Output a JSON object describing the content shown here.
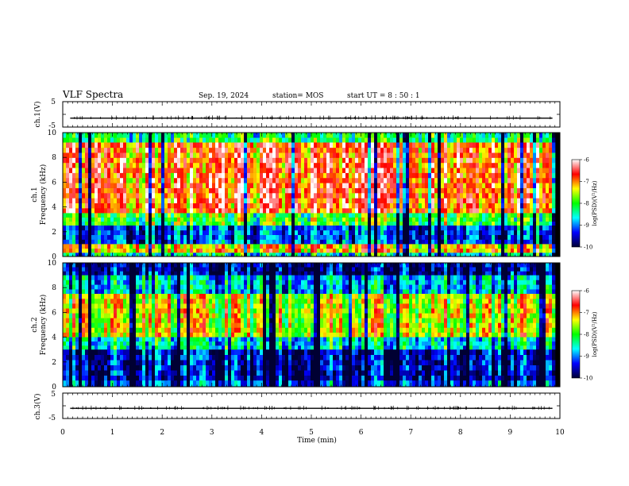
{
  "header": {
    "title": "VLF Spectra",
    "date": "Sep. 19, 2024",
    "station": "station= MOS",
    "start_ut": "start  UT =   8 : 50 : 1"
  },
  "chart_data": [
    {
      "type": "line",
      "panel": "ch1-waveform",
      "ylabel": "ch.1(V)",
      "yticks": [
        "5",
        "-5"
      ],
      "ylim": [
        -5,
        5
      ],
      "series": [
        {
          "values": [
            -1.5,
            -1.5,
            -1.5,
            -1.5,
            -1.5,
            -1.5,
            -1.5,
            -1.5,
            -1.5,
            -1.5
          ]
        }
      ]
    },
    {
      "type": "heatmap",
      "panel": "ch1-spectrogram",
      "ylabel_top": "ch.1",
      "ylabel": "Frequency (kHz)",
      "ylim": [
        0,
        10
      ],
      "yticks": [
        "0",
        "2",
        "4",
        "6",
        "8",
        "10"
      ],
      "colorbar": {
        "label": "log(PSD)(V²/Hz)",
        "ticks": [
          "-6",
          "-7",
          "-8",
          "-9",
          "-10"
        ],
        "range": [
          -10,
          -6
        ],
        "colors": [
          "#ffffff",
          "#ff0000",
          "#ffff00",
          "#00ff00",
          "#00ffff",
          "#0000ff",
          "#000033"
        ]
      },
      "bands": [
        {
          "from_khz": 9.2,
          "to_khz": 10.0,
          "level": -8.2
        },
        {
          "from_khz": 3.5,
          "to_khz": 9.2,
          "level": -6.8
        },
        {
          "from_khz": 2.5,
          "to_khz": 3.5,
          "level": -8.0
        },
        {
          "from_khz": 1.0,
          "to_khz": 2.5,
          "level": -9.2
        },
        {
          "from_khz": 0.3,
          "to_khz": 1.0,
          "level": -7.2
        },
        {
          "from_khz": 0.0,
          "to_khz": 0.3,
          "level": -8.5
        }
      ]
    },
    {
      "type": "heatmap",
      "panel": "ch2-spectrogram",
      "ylabel_top": "ch.2",
      "ylabel": "Frequency (kHz)",
      "ylim": [
        0,
        10
      ],
      "yticks": [
        "0",
        "2",
        "4",
        "6",
        "8",
        "10"
      ],
      "colorbar": {
        "label": "log(PSD)(V²/Hz)",
        "ticks": [
          "-6",
          "-7",
          "-8",
          "-9",
          "-10"
        ],
        "range": [
          -10,
          -6
        ],
        "colors": [
          "#ffffff",
          "#ff0000",
          "#ffff00",
          "#00ff00",
          "#00ffff",
          "#0000ff",
          "#000033"
        ]
      },
      "bands": [
        {
          "from_khz": 9.0,
          "to_khz": 10.0,
          "level": -9.7
        },
        {
          "from_khz": 7.5,
          "to_khz": 9.0,
          "level": -8.8
        },
        {
          "from_khz": 4.0,
          "to_khz": 7.5,
          "level": -7.5
        },
        {
          "from_khz": 3.0,
          "to_khz": 4.0,
          "level": -8.6
        },
        {
          "from_khz": 0.5,
          "to_khz": 3.0,
          "level": -9.6
        },
        {
          "from_khz": 0.0,
          "to_khz": 0.5,
          "level": -9.2
        }
      ]
    },
    {
      "type": "line",
      "panel": "ch3-waveform",
      "ylabel": "ch.3(V)",
      "yticks": [
        "5",
        "-5"
      ],
      "ylim": [
        -5,
        5
      ],
      "series": [
        {
          "values": [
            -1.0,
            -1.0,
            -1.0,
            -1.0,
            -1.0,
            -1.0,
            -1.0,
            -1.0,
            -1.0,
            -1.0
          ]
        }
      ]
    }
  ],
  "xaxis": {
    "label": "Time  (min)",
    "ticks": [
      "0",
      "1",
      "2",
      "3",
      "4",
      "5",
      "6",
      "7",
      "8",
      "9",
      "10"
    ],
    "xlim": [
      0,
      10
    ],
    "data_end_min": 9.85
  }
}
